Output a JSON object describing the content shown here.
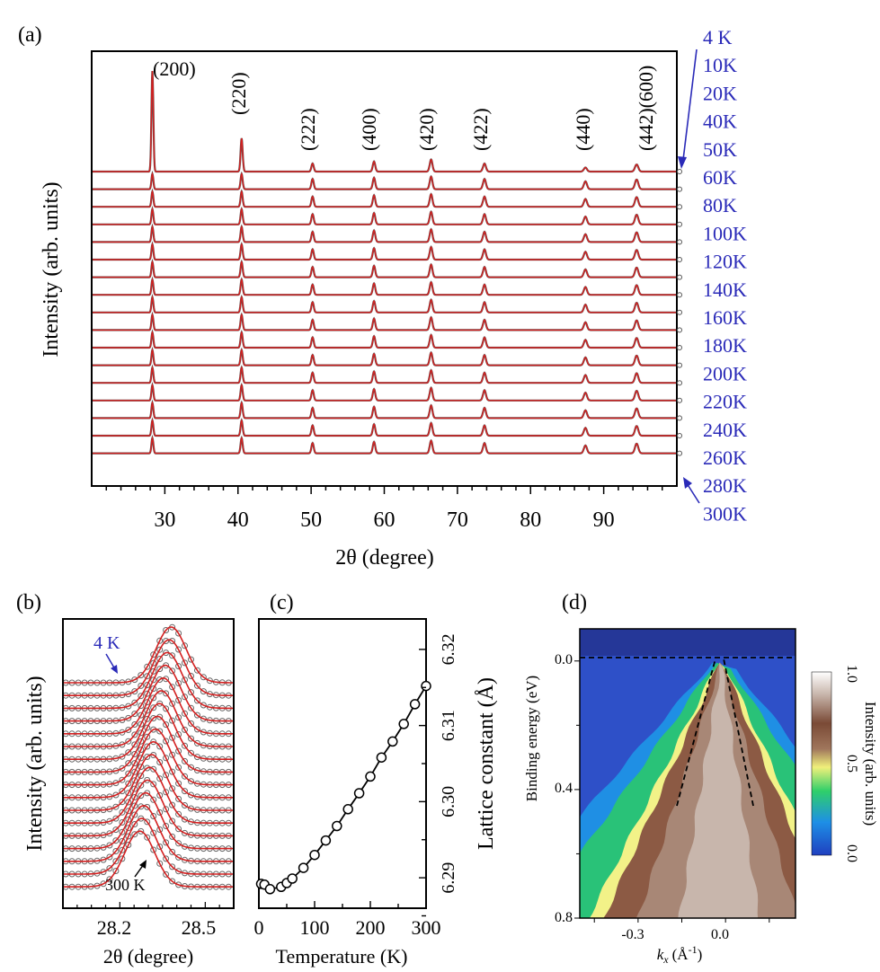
{
  "colors": {
    "fit": "#d42020",
    "data": "#555555",
    "temp_label": "#2a2ab8",
    "axis": "#000000"
  },
  "chart_data": [
    {
      "panel": "(a)",
      "type": "line",
      "title": "",
      "xlabel": "2θ (degree)",
      "ylabel": "Intensity (arb. units)",
      "xlim": [
        20,
        100
      ],
      "xticks": [
        30,
        40,
        50,
        60,
        70,
        80,
        90
      ],
      "temperatures": [
        "4 K",
        "10K",
        "20K",
        "40K",
        "50K",
        "60K",
        "80K",
        "100K",
        "120K",
        "140K",
        "160K",
        "180K",
        "200K",
        "220K",
        "240K",
        "260K",
        "280K",
        "300K"
      ],
      "peaks": [
        {
          "label": "(200)",
          "x": 28.3,
          "rel_height": 1.0
        },
        {
          "label": "(220)",
          "x": 40.5,
          "rel_height": 0.33
        },
        {
          "label": "(222)",
          "x": 50.2,
          "rel_height": 0.08
        },
        {
          "label": "(400)",
          "x": 58.6,
          "rel_height": 0.1
        },
        {
          "label": "(420)",
          "x": 66.4,
          "rel_height": 0.12
        },
        {
          "label": "(422)",
          "x": 73.7,
          "rel_height": 0.08
        },
        {
          "label": "(440)",
          "x": 87.5,
          "rel_height": 0.04
        },
        {
          "label": "(442)(600)",
          "x": 94.5,
          "rel_height": 0.07
        }
      ],
      "arrow_labels": [
        "4 K",
        "300K"
      ]
    },
    {
      "panel": "(b)",
      "type": "line",
      "xlabel": "2θ (degree)",
      "ylabel": "Intensity (arb. units)",
      "xlim": [
        28.0,
        28.6
      ],
      "xticks": [
        28.2,
        28.5
      ],
      "annotations": [
        "4 K",
        "300 K"
      ],
      "peak_center_low_T": 28.38,
      "peak_center_high_T": 28.27
    },
    {
      "panel": "(c)",
      "type": "line",
      "xlabel": "Temperature (K)",
      "ylabel": "Lattice constant (Å)",
      "xlim": [
        0,
        300
      ],
      "ylim": [
        6.286,
        6.324
      ],
      "xticks": [
        0,
        100,
        200,
        300
      ],
      "yticks": [
        6.29,
        6.3,
        6.31,
        6.32
      ],
      "x": [
        4,
        10,
        20,
        40,
        50,
        60,
        80,
        100,
        120,
        140,
        160,
        180,
        200,
        220,
        240,
        260,
        280,
        300
      ],
      "y": [
        6.2892,
        6.2891,
        6.2885,
        6.2888,
        6.2893,
        6.2899,
        6.2913,
        6.293,
        6.2949,
        6.2968,
        6.299,
        6.3011,
        6.3033,
        6.3058,
        6.3079,
        6.3102,
        6.3128,
        6.3152
      ]
    },
    {
      "panel": "(d)",
      "type": "heatmap",
      "xlabel_main": "k",
      "xlabel_sub": "x",
      "xlabel_unit": "(Å",
      "xlabel_exp": "-1",
      "xlabel_close": ")",
      "ylabel": "Binding energy (eV)",
      "xlim": [
        -0.5,
        0.24
      ],
      "ylim": [
        0.8,
        -0.1
      ],
      "xticks": [
        -0.3,
        0.0
      ],
      "yticks": [
        0.0,
        0.4,
        0.8
      ],
      "colorbar": {
        "label": "Intensity (arb. units)",
        "ticks": [
          0.0,
          0.5,
          1.0
        ]
      }
    }
  ],
  "labels": {
    "a": "(a)",
    "b": "(b)",
    "c": "(c)",
    "d": "(d)",
    "a_xtick": [
      "30",
      "40",
      "50",
      "60",
      "70",
      "80",
      "90"
    ],
    "b_xtick": [
      "28.2",
      "28.5"
    ],
    "c_xtick": [
      "0",
      "100",
      "200",
      "300"
    ],
    "c_ytick": [
      "6.32",
      "6.31",
      "6.30",
      "6.29"
    ],
    "d_xtick": [
      "-0.3",
      "0.0"
    ],
    "d_ytick": [
      "0.0",
      "0.4",
      "0.8"
    ],
    "cb_tick": [
      "1.0",
      "0.5",
      "0.0"
    ]
  }
}
